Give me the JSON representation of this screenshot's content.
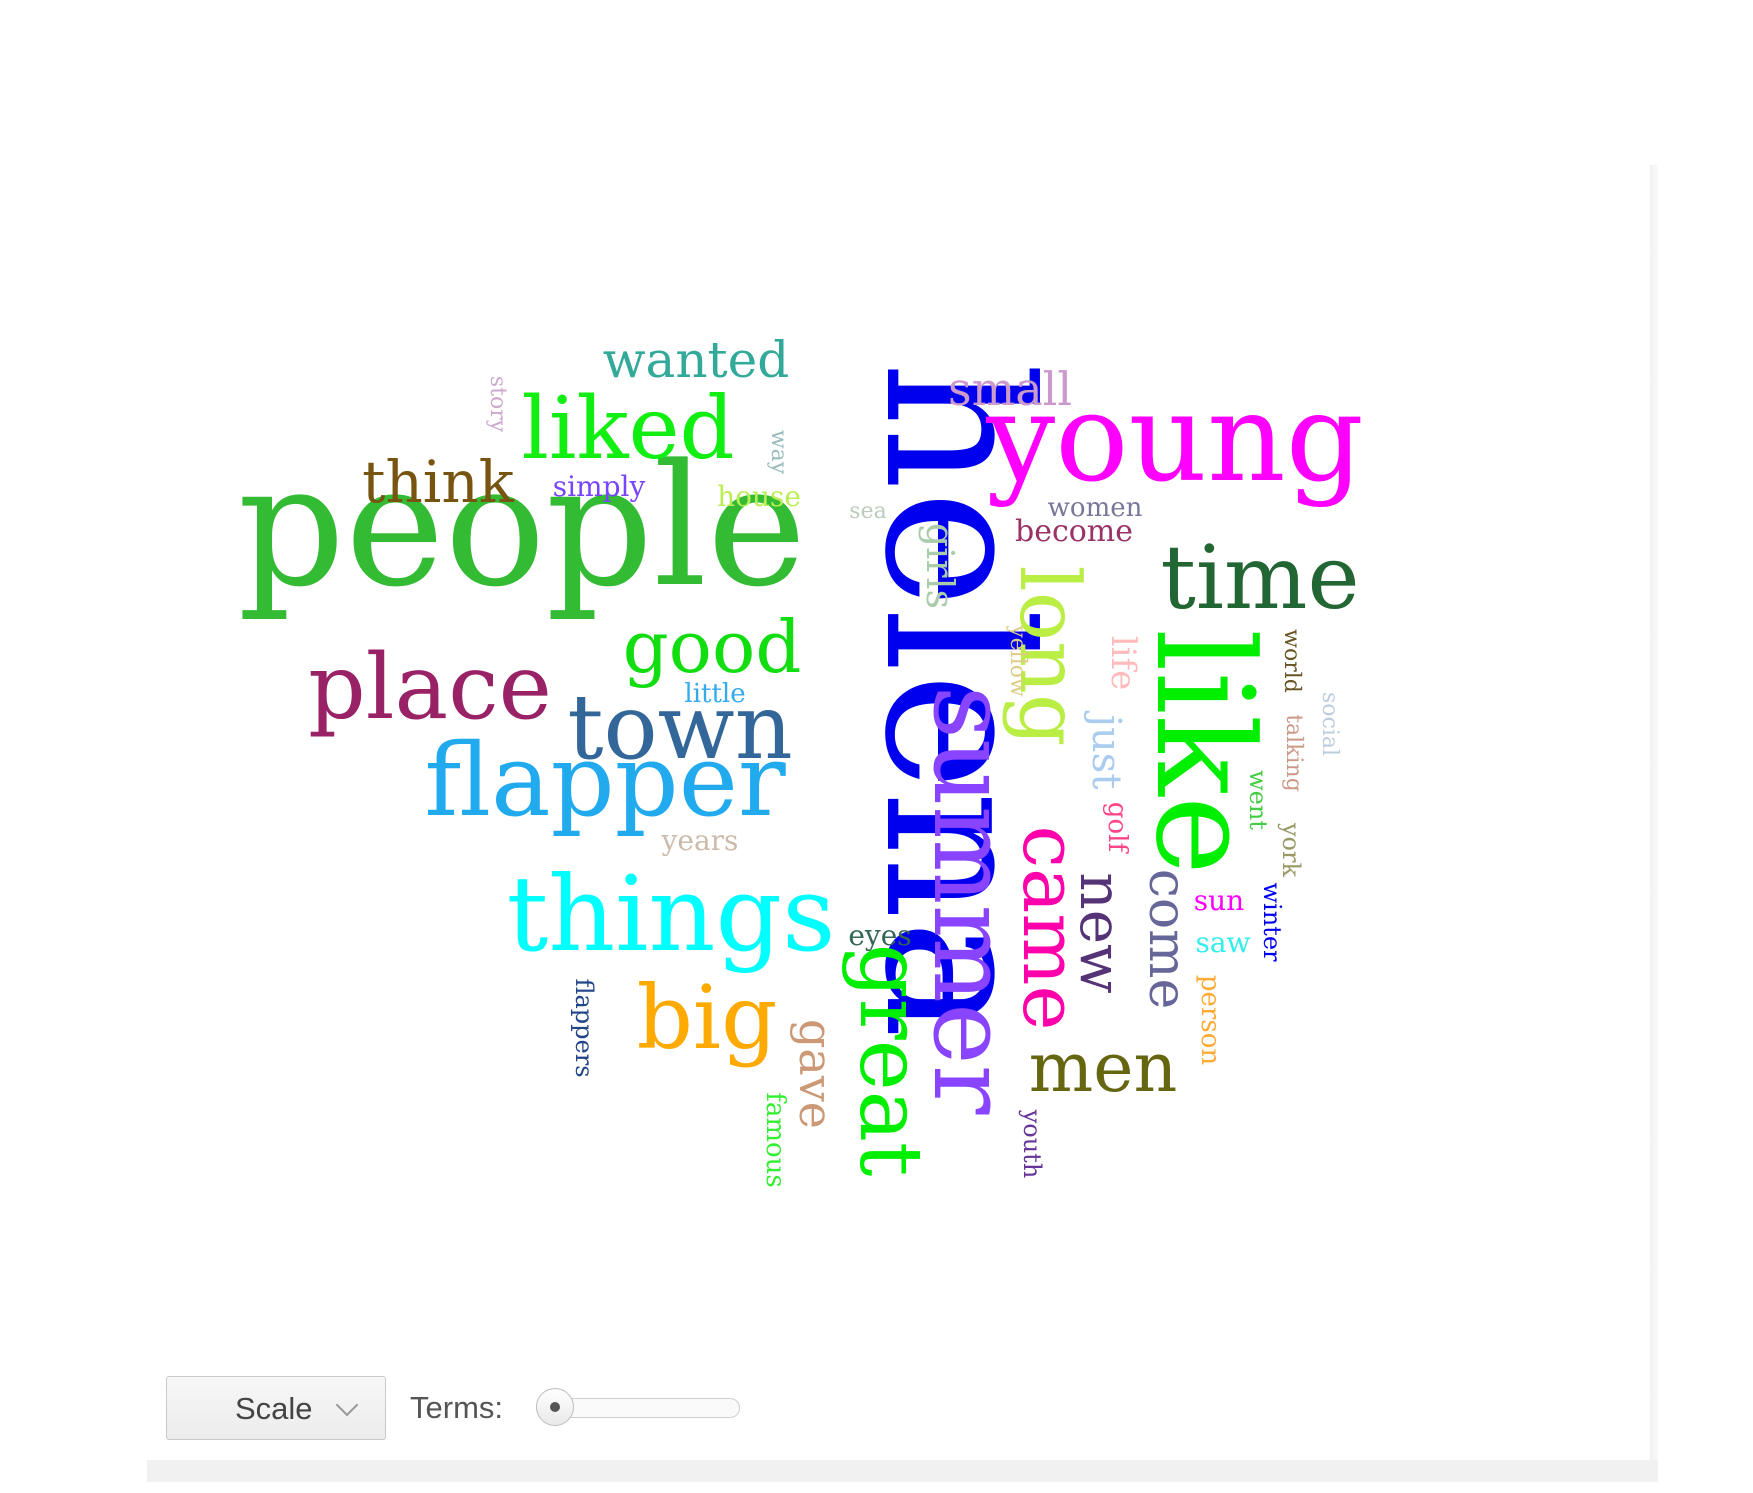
{
  "controls": {
    "scale_label": "Scale",
    "terms_label": "Terms:",
    "terms_slider_fraction": 0.0
  },
  "colors": {
    "panel_background": "#ffffff",
    "panel_shadow": "#f1f1f1"
  },
  "words": [
    {
      "text": "helena",
      "color": "#0000ee"
    },
    {
      "text": "people",
      "color": "#33bb33"
    },
    {
      "text": "young",
      "color": "#ff00ff"
    },
    {
      "text": "like",
      "color": "#00ee00"
    },
    {
      "text": "summer",
      "color": "#8844ff"
    },
    {
      "text": "things",
      "color": "#00ffff"
    },
    {
      "text": "flapper",
      "color": "#22aaee"
    },
    {
      "text": "time",
      "color": "#226633"
    },
    {
      "text": "town",
      "color": "#336699"
    },
    {
      "text": "place",
      "color": "#992266"
    },
    {
      "text": "liked",
      "color": "#11ee11"
    },
    {
      "text": "great",
      "color": "#00ee00"
    },
    {
      "text": "long",
      "color": "#bbee44"
    },
    {
      "text": "big",
      "color": "#ffaa00"
    },
    {
      "text": "came",
      "color": "#ff00aa"
    },
    {
      "text": "good",
      "color": "#11dd11"
    },
    {
      "text": "men",
      "color": "#666611"
    },
    {
      "text": "new",
      "color": "#553377"
    },
    {
      "text": "think",
      "color": "#775511"
    },
    {
      "text": "come",
      "color": "#666699"
    },
    {
      "text": "wanted",
      "color": "#33aa99"
    },
    {
      "text": "small",
      "color": "#cc99cc"
    },
    {
      "text": "gave",
      "color": "#cc9977"
    },
    {
      "text": "just",
      "color": "#aaccee"
    },
    {
      "text": "girls",
      "color": "#aaccaa"
    },
    {
      "text": "life",
      "color": "#ffbbbb"
    },
    {
      "text": "become",
      "color": "#993366"
    },
    {
      "text": "eyes",
      "color": "#336655"
    },
    {
      "text": "simply",
      "color": "#7744ff"
    },
    {
      "text": "house",
      "color": "#bbee55"
    },
    {
      "text": "years",
      "color": "#ccbbaa"
    },
    {
      "text": "sun",
      "color": "#ff00ff"
    },
    {
      "text": "saw",
      "color": "#33eeee"
    },
    {
      "text": "women",
      "color": "#777799"
    },
    {
      "text": "little",
      "color": "#33aaee"
    },
    {
      "text": "golf",
      "color": "#ff4488"
    },
    {
      "text": "person",
      "color": "#ffaa33"
    },
    {
      "text": "famous",
      "color": "#33ee33"
    },
    {
      "text": "flappers",
      "color": "#224488"
    },
    {
      "text": "youth",
      "color": "#663399"
    },
    {
      "text": "winter",
      "color": "#0000ee"
    },
    {
      "text": "york",
      "color": "#999966"
    },
    {
      "text": "went",
      "color": "#44cc44"
    },
    {
      "text": "talking",
      "color": "#cc9988"
    },
    {
      "text": "social",
      "color": "#bbccdd"
    },
    {
      "text": "world",
      "color": "#665522"
    },
    {
      "text": "yellow",
      "color": "#ddcc88"
    },
    {
      "text": "sea",
      "color": "#bbccbb"
    },
    {
      "text": "way",
      "color": "#99bbbb"
    },
    {
      "text": "story",
      "color": "#ccaacc"
    }
  ]
}
